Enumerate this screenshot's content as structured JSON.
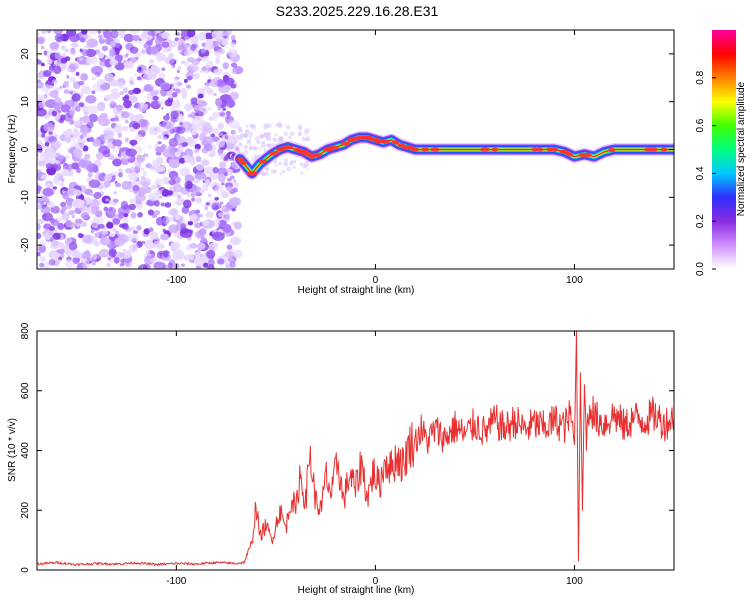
{
  "figure": {
    "title": "S233.2025.229.16.28.E31"
  },
  "chart_data": [
    {
      "type": "heatmap",
      "name": "spectrogram",
      "title": "S233.2025.229.16.28.E31",
      "xlabel": "Height of straight line (km)",
      "ylabel": "Frequency (Hz)",
      "xlim": [
        -170,
        150
      ],
      "ylim": [
        -25,
        25
      ],
      "xticks": [
        -100,
        0,
        100
      ],
      "yticks": [
        -20,
        -10,
        0,
        10,
        20
      ],
      "noise_region_x": [
        -170,
        -69
      ],
      "signal_onset_x": -69,
      "signal_ridge": {
        "x": [
          -68,
          -62,
          -58,
          -52,
          -48,
          -44,
          -40,
          -36,
          -32,
          -28,
          -24,
          -20,
          -16,
          -12,
          -8,
          -4,
          0,
          4,
          8,
          12,
          16,
          20,
          40,
          60,
          80,
          90,
          95,
          100,
          105,
          110,
          115,
          120,
          130,
          140,
          150
        ],
        "y": [
          -2,
          -5,
          -3,
          -1,
          0,
          0.5,
          0,
          -0.5,
          -1.5,
          -1,
          0,
          0.5,
          1,
          2,
          2.5,
          2.5,
          2,
          1.5,
          2,
          1,
          0.5,
          0,
          0,
          0,
          0,
          0,
          -0.5,
          -1.5,
          -1,
          -1.5,
          -0.5,
          0,
          0,
          0,
          0
        ]
      },
      "colorbar": {
        "label": "Normalized spectral amplitude",
        "range": [
          0,
          1
        ],
        "ticks": [
          "0.0",
          "0.2",
          "0.4",
          "0.6",
          "0.8"
        ],
        "colors": [
          "#ffffff",
          "#d090ff",
          "#8a2be2",
          "#3030ff",
          "#00c8ff",
          "#00ff80",
          "#40ff00",
          "#ffff00",
          "#ff8000",
          "#ff0000",
          "#ff00a0"
        ]
      }
    },
    {
      "type": "line",
      "name": "snr",
      "xlabel": "Height of straight line (km)",
      "ylabel": "SNR (10 * v/v)",
      "xlim": [
        -170,
        150
      ],
      "ylim": [
        0,
        800
      ],
      "xticks": [
        -100,
        0,
        100
      ],
      "yticks": [
        0,
        200,
        400,
        600,
        800
      ],
      "line_color": "#e83030",
      "series": [
        {
          "name": "SNR",
          "x": [
            -170,
            -160,
            -150,
            -140,
            -130,
            -120,
            -110,
            -100,
            -90,
            -80,
            -70,
            -66,
            -62,
            -60,
            -58,
            -55,
            -52,
            -48,
            -45,
            -42,
            -40,
            -38,
            -35,
            -33,
            -30,
            -27,
            -25,
            -22,
            -19,
            -16,
            -13,
            -10,
            -7,
            -4,
            -1,
            2,
            5,
            8,
            11,
            14,
            17,
            20,
            23,
            26,
            30,
            35,
            40,
            45,
            50,
            55,
            60,
            65,
            70,
            75,
            80,
            85,
            90,
            95,
            98,
            100,
            101,
            102,
            103,
            104,
            105,
            106,
            108,
            110,
            115,
            120,
            125,
            130,
            135,
            140,
            145,
            150
          ],
          "y": [
            20,
            25,
            18,
            22,
            20,
            24,
            18,
            22,
            20,
            25,
            22,
            25,
            90,
            220,
            110,
            150,
            100,
            200,
            140,
            250,
            190,
            320,
            230,
            395,
            230,
            200,
            320,
            250,
            370,
            230,
            320,
            270,
            360,
            240,
            330,
            280,
            370,
            340,
            380,
            350,
            420,
            430,
            470,
            430,
            470,
            440,
            480,
            450,
            490,
            460,
            500,
            470,
            500,
            470,
            490,
            475,
            500,
            480,
            520,
            420,
            800,
            30,
            660,
            200,
            620,
            450,
            560,
            510,
            490,
            520,
            480,
            510,
            500,
            520,
            490,
            510
          ]
        }
      ]
    }
  ]
}
